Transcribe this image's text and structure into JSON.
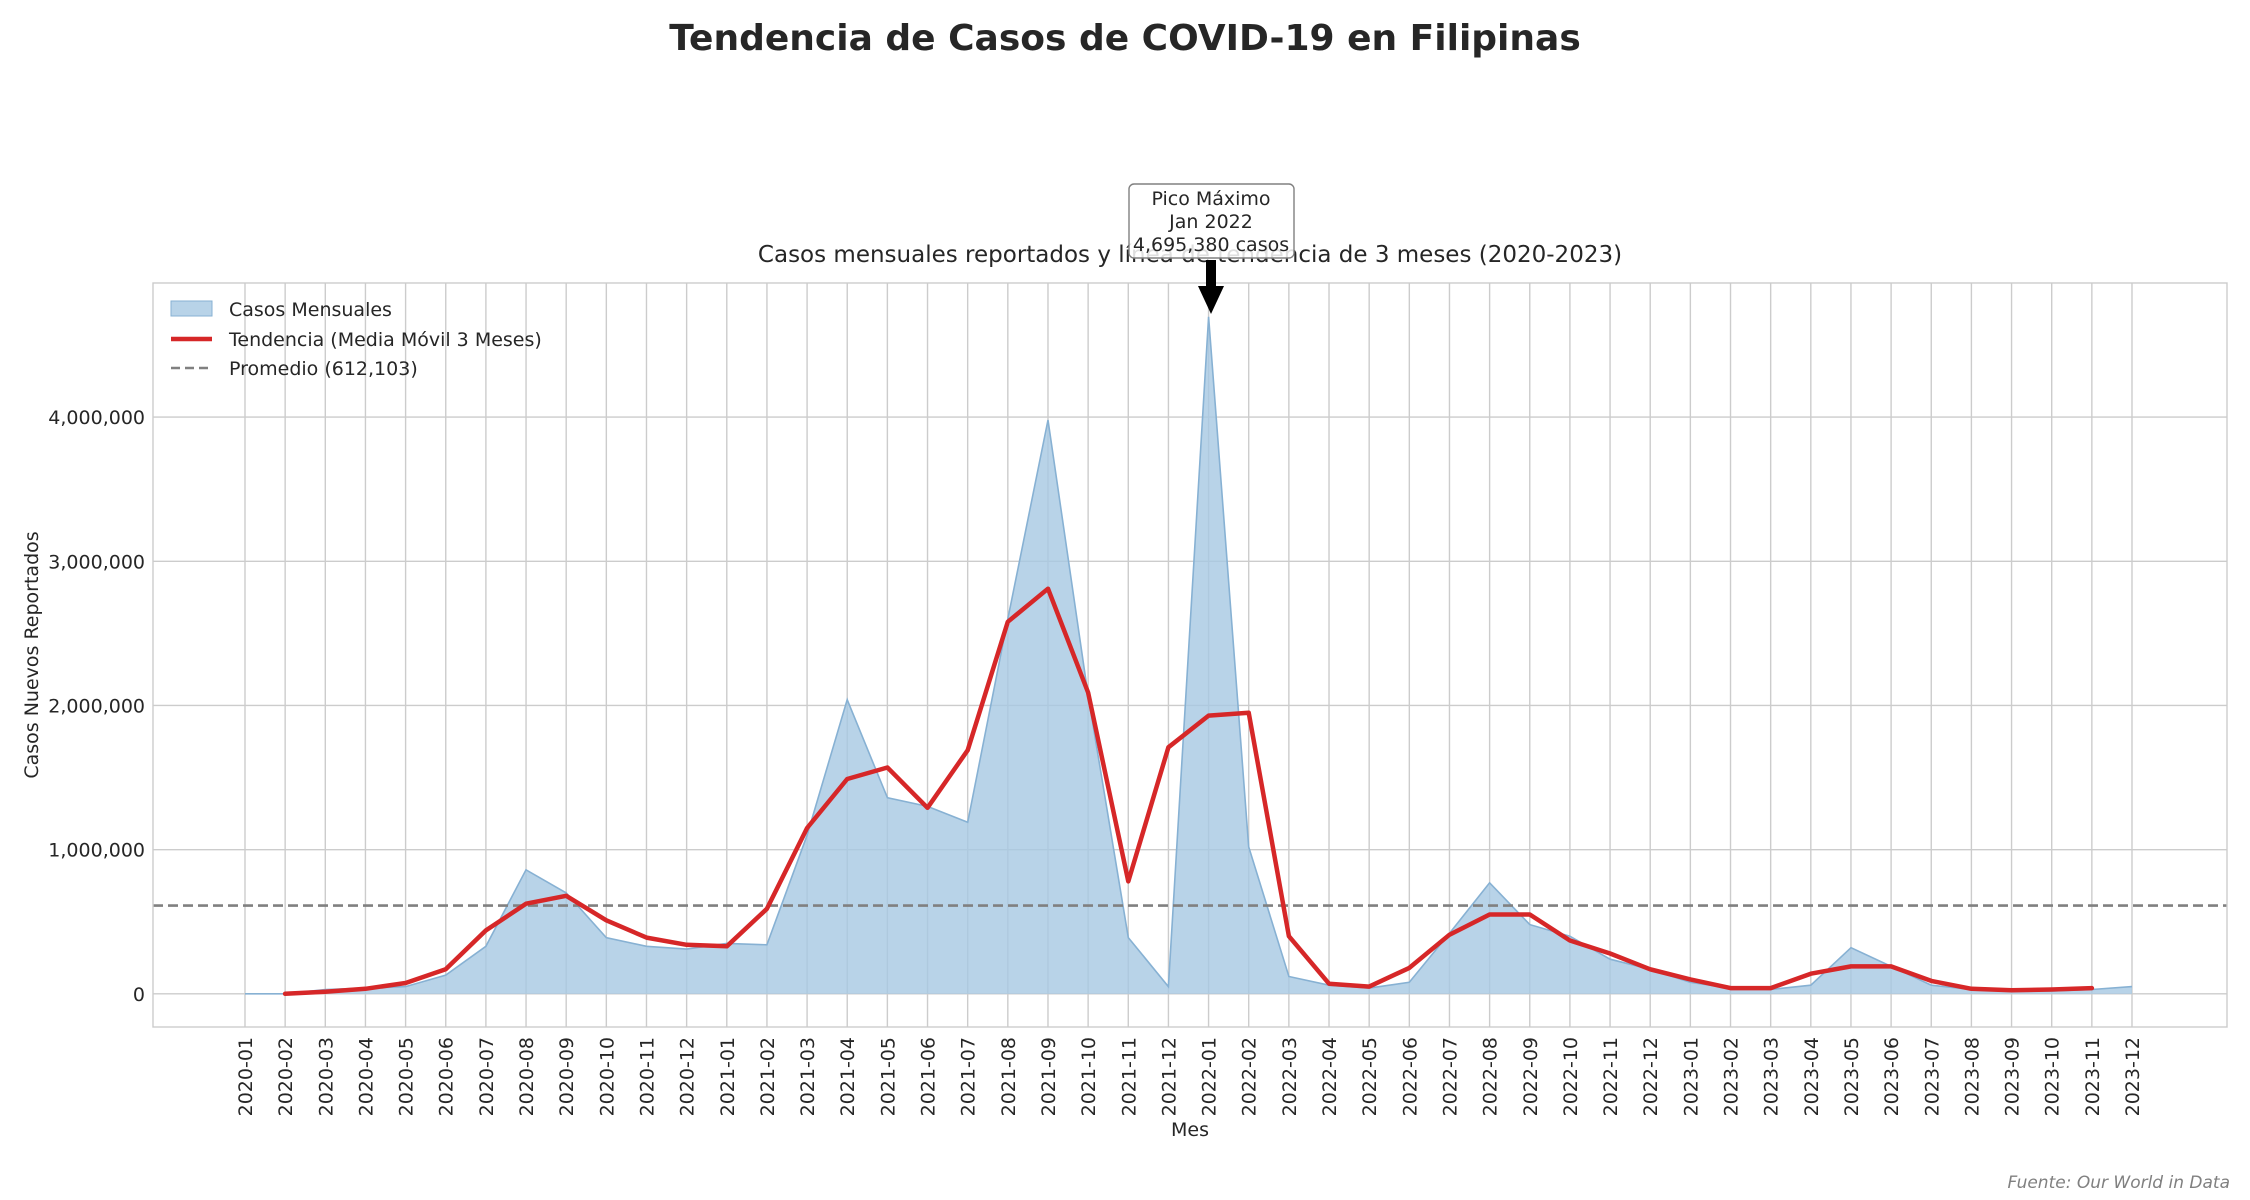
{
  "chart_data": {
    "type": "area",
    "title": "Tendencia de Casos de COVID-19 en Filipinas",
    "subtitle": "Casos mensuales reportados y línea de tendencia de 3 meses (2020-2023)",
    "xlabel": "Mes",
    "ylabel": "Casos Nuevos Reportados",
    "ylim": [
      -230000,
      4930000
    ],
    "yticks": [
      0,
      1000000,
      2000000,
      3000000,
      4000000
    ],
    "ytick_labels": [
      "0",
      "1,000,000",
      "2,000,000",
      "3,000,000",
      "4,000,000"
    ],
    "grid": true,
    "legend_position": "top-left",
    "legend": [
      "Casos Mensuales",
      "Tendencia (Media Móvil 3 Meses)",
      "Promedio (612,103)"
    ],
    "categories": [
      "2020-01",
      "2020-02",
      "2020-03",
      "2020-04",
      "2020-05",
      "2020-06",
      "2020-07",
      "2020-08",
      "2020-09",
      "2020-10",
      "2020-11",
      "2020-12",
      "2021-01",
      "2021-02",
      "2021-03",
      "2021-04",
      "2021-05",
      "2021-06",
      "2021-07",
      "2021-08",
      "2021-09",
      "2021-10",
      "2021-11",
      "2021-12",
      "2022-01",
      "2022-02",
      "2022-03",
      "2022-04",
      "2022-05",
      "2022-06",
      "2022-07",
      "2022-08",
      "2022-09",
      "2022-10",
      "2022-11",
      "2022-12",
      "2023-01",
      "2023-02",
      "2023-03",
      "2023-04",
      "2023-05",
      "2023-06",
      "2023-07",
      "2023-08",
      "2023-09",
      "2023-10",
      "2023-11",
      "2023-12"
    ],
    "series": [
      {
        "name": "Casos Mensuales",
        "kind": "area",
        "color": "#a6c8e2",
        "edge_color": "#87b1d3",
        "values": [
          3,
          2,
          30000,
          40000,
          50000,
          130000,
          330000,
          860000,
          700000,
          390000,
          330000,
          310000,
          350000,
          340000,
          1100000,
          2040000,
          1360000,
          1300000,
          1190000,
          2600000,
          3980000,
          2070000,
          390000,
          50000,
          4695380,
          1020000,
          120000,
          60000,
          40000,
          80000,
          420000,
          770000,
          480000,
          400000,
          240000,
          170000,
          80000,
          40000,
          30000,
          60000,
          320000,
          190000,
          60000,
          30000,
          20000,
          20000,
          30000,
          50000
        ]
      },
      {
        "name": "Tendencia (Media Móvil 3 Meses)",
        "kind": "line",
        "color": "#d62728",
        "values": [
          null,
          0,
          15000,
          35000,
          75000,
          170000,
          440000,
          625000,
          680000,
          510000,
          390000,
          340000,
          330000,
          590000,
          1150000,
          1490000,
          1570000,
          1290000,
          1690000,
          2580000,
          2810000,
          2090000,
          780000,
          1710000,
          1930000,
          1950000,
          400000,
          70000,
          50000,
          180000,
          410000,
          550000,
          550000,
          370000,
          280000,
          170000,
          100000,
          40000,
          40000,
          140000,
          190000,
          190000,
          90000,
          35000,
          25000,
          30000,
          40000,
          null
        ]
      },
      {
        "name": "Promedio (612,103)",
        "kind": "hline",
        "color": "#808080",
        "value": 612103
      }
    ],
    "annotation": {
      "lines": [
        "Pico Máximo",
        "Jan 2022",
        "4,695,380 casos"
      ],
      "x": "2022-01",
      "y": 4695380
    }
  },
  "source_note": "Fuente: Our World in Data"
}
